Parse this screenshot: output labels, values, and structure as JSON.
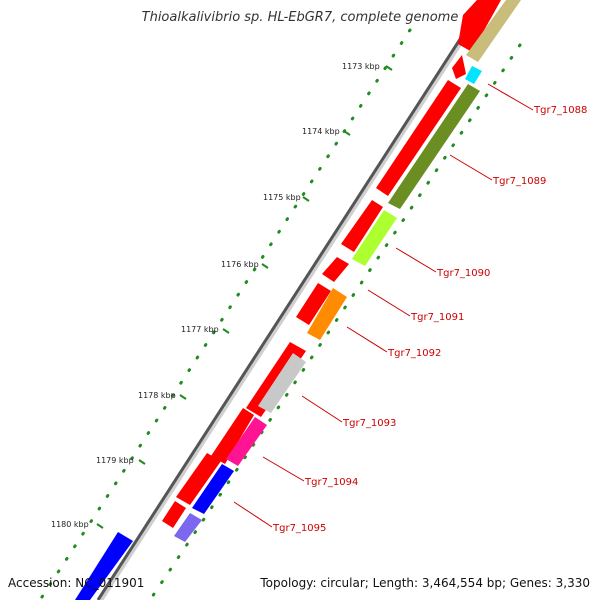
{
  "title": "Thioalkalivibrio sp. HL-EbGR7, complete genome",
  "footer": {
    "accession": "Accession: NC_011901",
    "topology": "Topology: circular; Length: 3,464,554 bp; Genes: 3,330"
  },
  "kbp_ticks": [
    "1173 kbp",
    "1174 kbp",
    "1175 kbp",
    "1176 kbp",
    "1177 kbp",
    "1178 kbp",
    "1179 kbp",
    "1180 kbp"
  ],
  "gene_labels": [
    "Tgr7_1088",
    "Tgr7_1089",
    "Tgr7_1090",
    "Tgr7_1091",
    "Tgr7_1092",
    "Tgr7_1093",
    "Tgr7_1094",
    "Tgr7_1095"
  ],
  "colors": {
    "red": "#ff0000",
    "tan": "#c8bd7a",
    "cyan": "#00e5ff",
    "olive": "#6b8e23",
    "lime": "#adff2f",
    "orange": "#ff8c00",
    "gray": "#c8c8c8",
    "pink": "#ff1493",
    "blue": "#0000ff",
    "lavender": "#7b68ee",
    "dotted_green": "#228b22",
    "label_red": "#cc0000"
  }
}
